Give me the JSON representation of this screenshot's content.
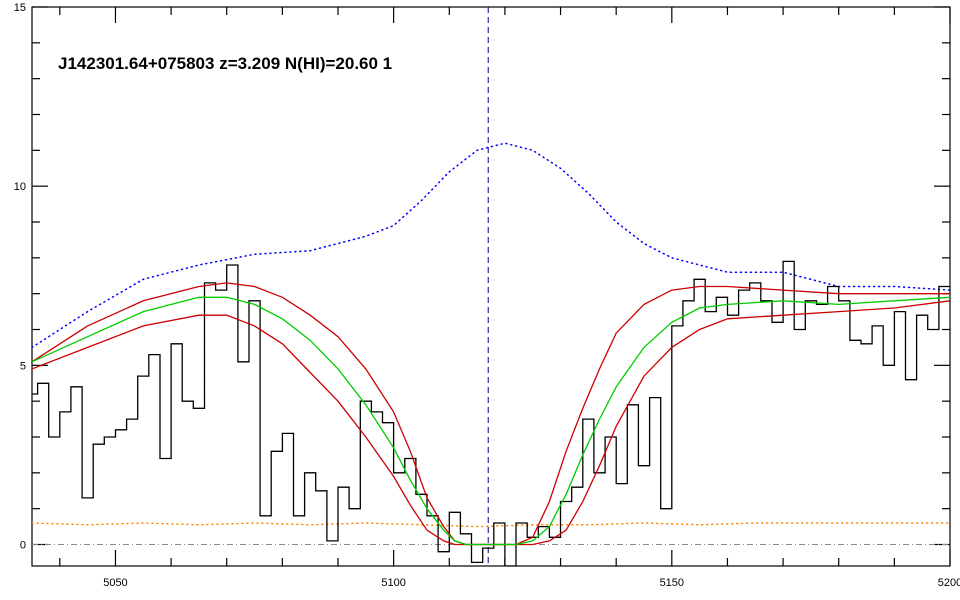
{
  "chart_data": {
    "type": "line",
    "title": "J142301.64+075803 z=3.209 N(HI)=20.60 1",
    "xlabel": "",
    "ylabel": "",
    "xlim": [
      5035,
      5200
    ],
    "ylim": [
      -0.6,
      15
    ],
    "x_ticks": [
      5050,
      5100,
      5150,
      5200
    ],
    "x_tick_labels": [
      "5050",
      "5100",
      "5150",
      "5200"
    ],
    "y_ticks": [
      0,
      5,
      10,
      15
    ],
    "y_tick_labels": [
      "0",
      "5",
      "10",
      "15"
    ],
    "grid": false,
    "marker_line_x": 5117,
    "zero_line_y": 0,
    "colors": {
      "flux": "#000000",
      "model": "#00cc00",
      "bounds": "#cc0000",
      "continuum": "#0000ff",
      "error": "#ff8800",
      "marker": "#00008b",
      "zero": "#888888"
    },
    "series": [
      {
        "key": "flux",
        "style": "step",
        "x": [
          5035,
          5037,
          5039,
          5041,
          5043,
          5045,
          5047,
          5049,
          5051,
          5053,
          5055,
          5057,
          5059,
          5061,
          5063,
          5065,
          5067,
          5069,
          5071,
          5073,
          5075,
          5077,
          5079,
          5081,
          5083,
          5085,
          5087,
          5089,
          5091,
          5093,
          5095,
          5097,
          5099,
          5101,
          5103,
          5105,
          5107,
          5109,
          5111,
          5113,
          5115,
          5117,
          5119,
          5121,
          5123,
          5125,
          5127,
          5129,
          5131,
          5133,
          5135,
          5137,
          5139,
          5141,
          5143,
          5145,
          5147,
          5149,
          5151,
          5153,
          5155,
          5157,
          5159,
          5161,
          5163,
          5165,
          5167,
          5169,
          5171,
          5173,
          5175,
          5177,
          5179,
          5181,
          5183,
          5185,
          5187,
          5189,
          5191,
          5193,
          5195,
          5197,
          5199
        ],
        "y": [
          4.2,
          4.5,
          3.0,
          3.7,
          4.4,
          1.3,
          2.8,
          3.0,
          3.2,
          3.5,
          4.7,
          5.3,
          2.4,
          5.6,
          4.0,
          3.8,
          7.3,
          7.1,
          7.8,
          5.1,
          6.8,
          0.8,
          2.6,
          3.1,
          0.8,
          2.0,
          1.5,
          0.1,
          1.6,
          1.0,
          4.0,
          3.7,
          3.4,
          2.0,
          2.4,
          1.4,
          0.8,
          -0.2,
          0.9,
          0.3,
          -0.5,
          -0.1,
          0.6,
          -0.6,
          0.6,
          0.2,
          0.5,
          0.2,
          1.2,
          1.6,
          3.5,
          2.0,
          3.0,
          1.7,
          3.9,
          2.2,
          4.1,
          1.0,
          6.1,
          6.8,
          7.4,
          6.5,
          6.9,
          6.4,
          7.1,
          7.3,
          6.8,
          6.2,
          7.9,
          6.0,
          6.8,
          6.7,
          7.2,
          6.8,
          5.7,
          5.6,
          6.1,
          5.0,
          6.5,
          4.6,
          6.4,
          6.0,
          7.2
        ]
      },
      {
        "key": "model",
        "style": "line",
        "x": [
          5035,
          5045,
          5055,
          5065,
          5070,
          5075,
          5080,
          5085,
          5090,
          5095,
          5100,
          5103,
          5106,
          5109,
          5111,
          5113,
          5116,
          5119,
          5122,
          5125,
          5128,
          5131,
          5134,
          5137,
          5140,
          5145,
          5150,
          5155,
          5160,
          5170,
          5180,
          5190,
          5200
        ],
        "y": [
          5.1,
          5.8,
          6.5,
          6.9,
          6.9,
          6.7,
          6.3,
          5.7,
          4.9,
          3.9,
          2.7,
          1.8,
          1.0,
          0.4,
          0.1,
          0.0,
          0.0,
          0.0,
          0.0,
          0.1,
          0.5,
          1.4,
          2.5,
          3.5,
          4.4,
          5.5,
          6.2,
          6.6,
          6.7,
          6.8,
          6.7,
          6.8,
          6.9
        ]
      },
      {
        "key": "bound-upper",
        "style": "line",
        "x": [
          5035,
          5045,
          5055,
          5065,
          5070,
          5075,
          5080,
          5085,
          5090,
          5095,
          5100,
          5103,
          5106,
          5109,
          5111,
          5113,
          5116,
          5119,
          5122,
          5125,
          5128,
          5131,
          5134,
          5137,
          5140,
          5145,
          5150,
          5155,
          5160,
          5170,
          5180,
          5190,
          5200
        ],
        "y": [
          5.1,
          6.1,
          6.8,
          7.2,
          7.3,
          7.2,
          6.9,
          6.4,
          5.8,
          4.9,
          3.7,
          2.6,
          1.3,
          0.5,
          0.1,
          0.0,
          0.0,
          0.0,
          0.0,
          0.2,
          1.2,
          2.6,
          3.8,
          4.9,
          5.9,
          6.7,
          7.1,
          7.2,
          7.2,
          7.1,
          7.0,
          7.0,
          7.0
        ]
      },
      {
        "key": "bound-lower",
        "style": "line",
        "x": [
          5035,
          5045,
          5055,
          5065,
          5070,
          5075,
          5080,
          5085,
          5090,
          5095,
          5100,
          5103,
          5106,
          5109,
          5111,
          5113,
          5116,
          5119,
          5122,
          5125,
          5128,
          5131,
          5134,
          5137,
          5140,
          5145,
          5150,
          5155,
          5160,
          5170,
          5180,
          5190,
          5200
        ],
        "y": [
          4.9,
          5.5,
          6.1,
          6.4,
          6.4,
          6.1,
          5.6,
          4.8,
          4.0,
          3.0,
          1.9,
          1.1,
          0.4,
          0.1,
          0.0,
          0.0,
          0.0,
          0.0,
          0.0,
          0.0,
          0.1,
          0.4,
          1.2,
          2.2,
          3.3,
          4.7,
          5.5,
          6.0,
          6.3,
          6.4,
          6.5,
          6.6,
          6.8
        ]
      },
      {
        "key": "continuum",
        "style": "dotted",
        "x": [
          5035,
          5045,
          5055,
          5065,
          5075,
          5085,
          5095,
          5100,
          5105,
          5110,
          5115,
          5120,
          5125,
          5130,
          5135,
          5140,
          5145,
          5150,
          5155,
          5160,
          5170,
          5180,
          5190,
          5200
        ],
        "y": [
          5.5,
          6.5,
          7.4,
          7.8,
          8.1,
          8.2,
          8.6,
          8.9,
          9.6,
          10.4,
          11.0,
          11.2,
          11.0,
          10.5,
          9.8,
          9.0,
          8.4,
          8.0,
          7.8,
          7.6,
          7.6,
          7.2,
          7.2,
          7.1
        ]
      },
      {
        "key": "error",
        "style": "dotted",
        "x": [
          5035,
          5045,
          5055,
          5065,
          5075,
          5085,
          5095,
          5105,
          5115,
          5125,
          5135,
          5145,
          5155,
          5165,
          5175,
          5185,
          5200
        ],
        "y": [
          0.6,
          0.55,
          0.6,
          0.55,
          0.6,
          0.55,
          0.6,
          0.55,
          0.5,
          0.55,
          0.55,
          0.6,
          0.55,
          0.6,
          0.6,
          0.6,
          0.6
        ]
      }
    ]
  }
}
